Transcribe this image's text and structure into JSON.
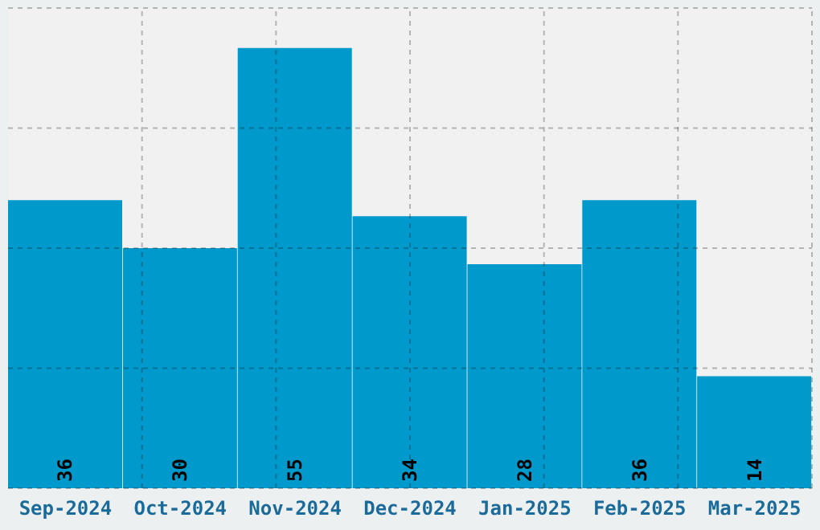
{
  "chart_data": {
    "type": "bar",
    "categories": [
      "Sep-2024",
      "Oct-2024",
      "Nov-2024",
      "Dec-2024",
      "Jan-2025",
      "Feb-2025",
      "Mar-2025"
    ],
    "values": [
      36,
      30,
      55,
      34,
      28,
      36,
      14
    ],
    "color": "#0099cc",
    "ylim": [
      0,
      60
    ],
    "yticks": [
      {
        "value": 0,
        "label": null
      },
      {
        "value": 15,
        "label": null
      },
      {
        "value": 30,
        "label": null
      },
      {
        "value": 45,
        "label": null
      },
      {
        "value": 60,
        "label": null
      }
    ],
    "grid": true,
    "data_labels": true,
    "tick_labels": "x"
  }
}
